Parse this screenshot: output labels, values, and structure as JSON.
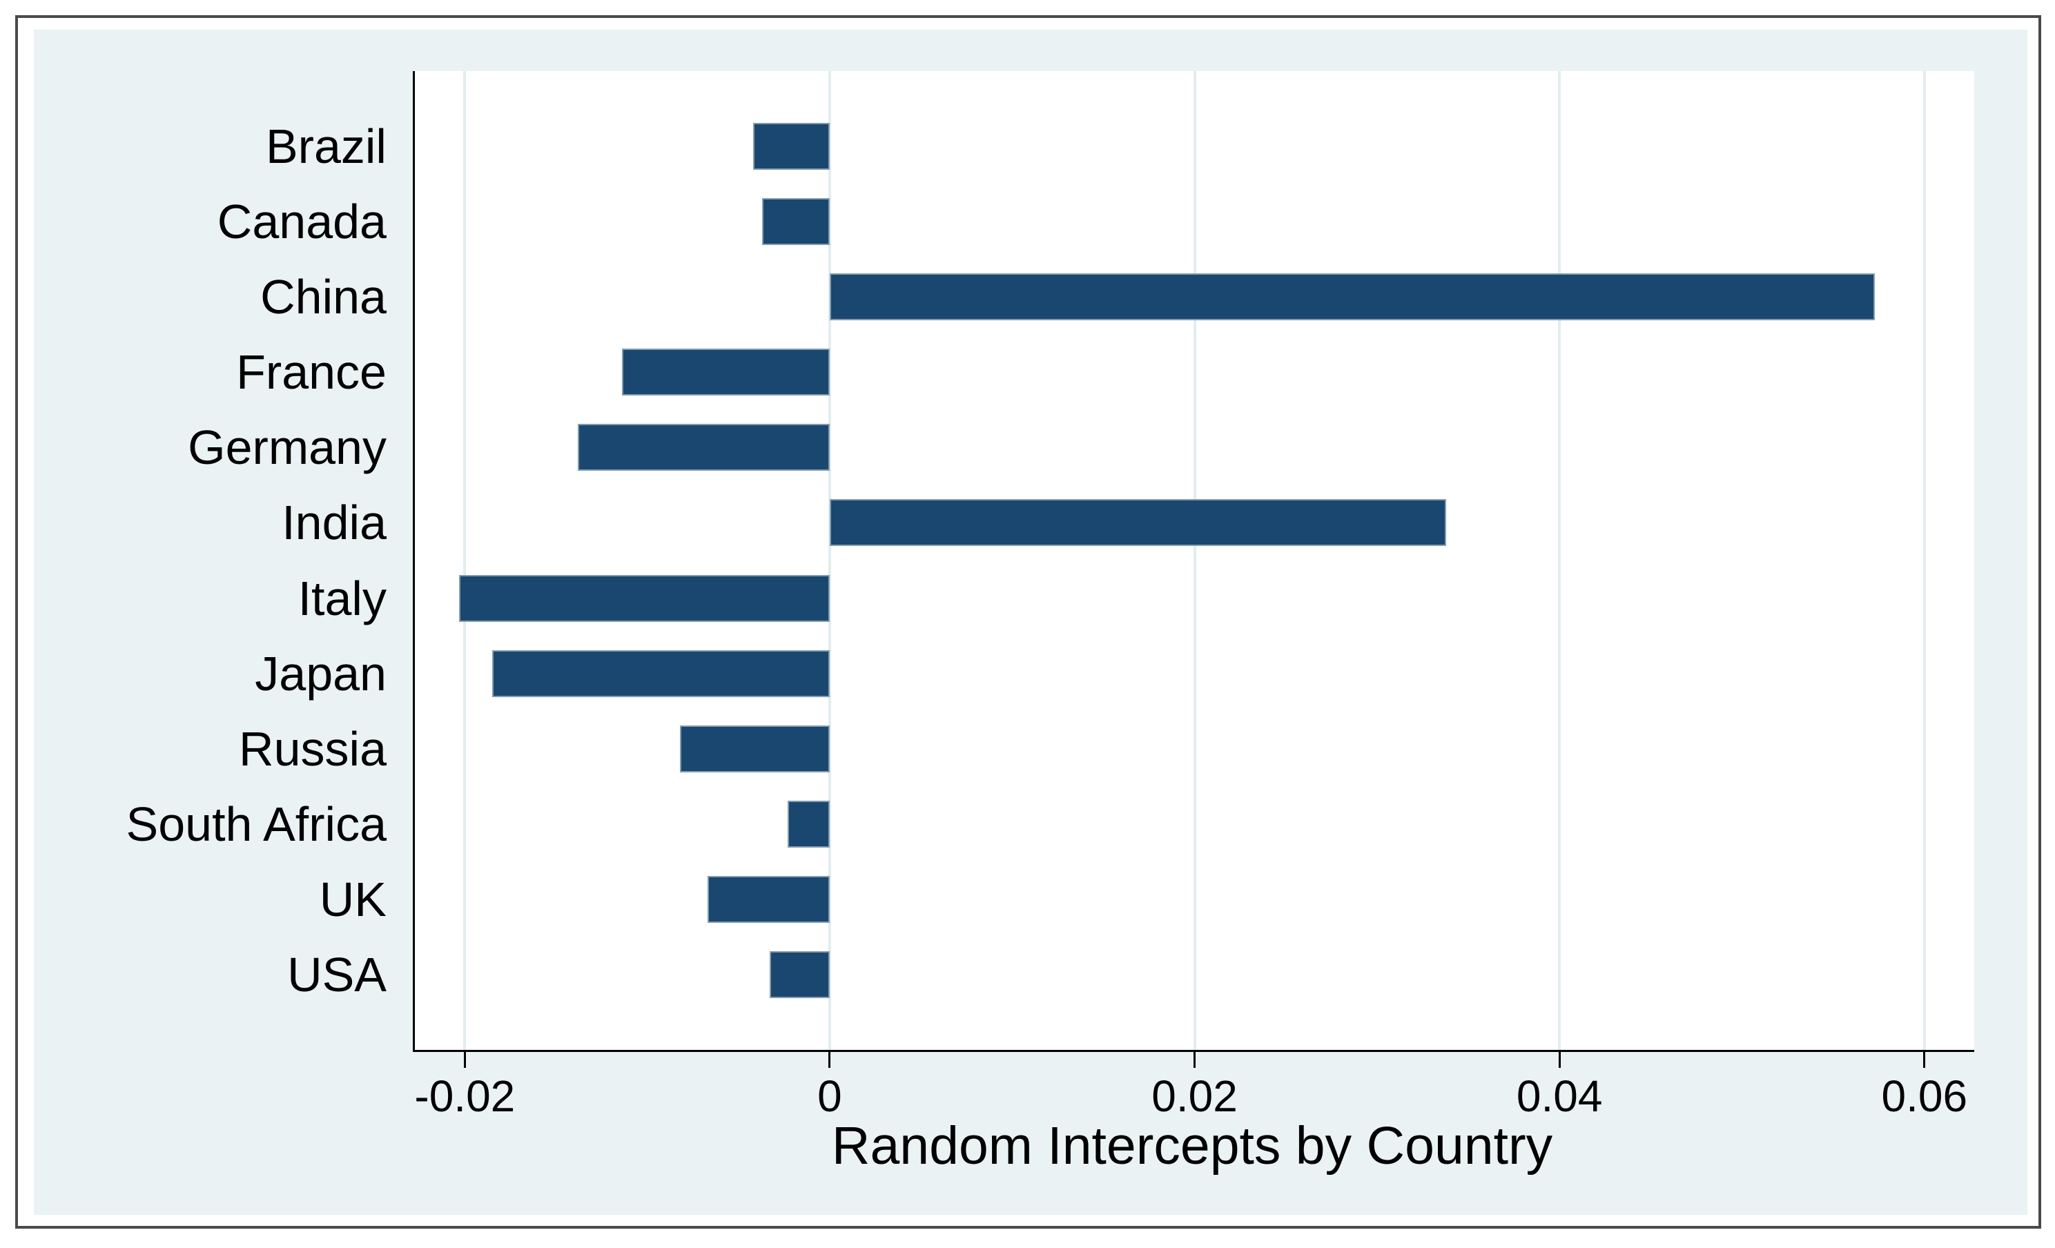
{
  "style": {
    "page_background": "#ffffff",
    "frame_border_color": "#4a4a4a",
    "graph_background": "#eaf2f3",
    "plot_background": "#ffffff",
    "axis_color": "#000000",
    "text_color": "#000000",
    "gridline_color": "#e2edf0",
    "bar_fill": "#1a476f",
    "bar_outline": "#849cb0"
  },
  "chart_data": {
    "type": "bar",
    "orientation": "horizontal",
    "title": "",
    "xlabel": "Random Intercepts by Country",
    "ylabel": "",
    "categories": [
      "Brazil",
      "Canada",
      "China",
      "France",
      "Germany",
      "India",
      "Italy",
      "Japan",
      "Russia",
      "South Africa",
      "UK",
      "USA"
    ],
    "values": [
      -0.0042,
      -0.0037,
      0.0573,
      -0.0114,
      -0.0138,
      0.0338,
      -0.0203,
      -0.0185,
      -0.0082,
      -0.0023,
      -0.0067,
      -0.0033
    ],
    "x_ticks": [
      -0.02,
      0,
      0.02,
      0.04,
      0.06
    ],
    "x_tick_labels": [
      "-0.02",
      "0",
      "0.02",
      "0.04",
      "0.06"
    ],
    "xlim": [
      -0.02285,
      0.06262
    ],
    "grid": true,
    "legend": false
  }
}
